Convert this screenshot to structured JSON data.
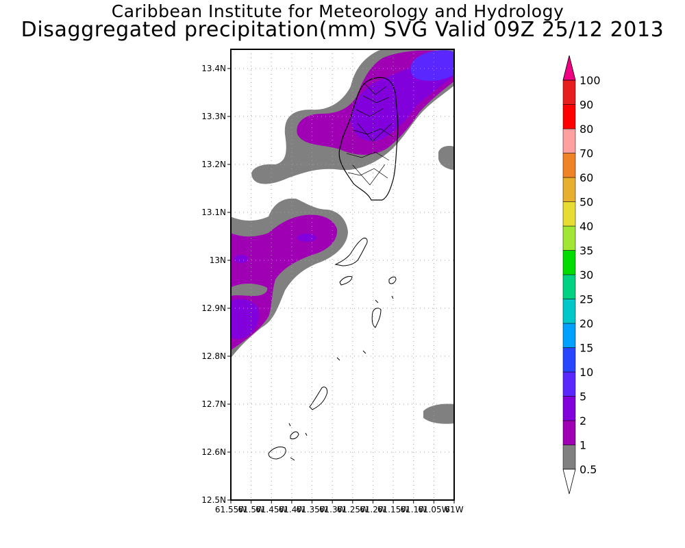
{
  "title": {
    "line1": "Caribbean Institute for Meteorology and Hydrology",
    "line2": "Disaggregated precipitation(mm) SVG Valid 09Z 25/12 2013"
  },
  "map": {
    "lat_labels": [
      "13.4N",
      "13.3N",
      "13.2N",
      "13.1N",
      "13N",
      "12.9N",
      "12.8N",
      "12.7N",
      "12.6N",
      "12.5N"
    ],
    "lon_labels": [
      "61.55W",
      "61.5W",
      "61.45W",
      "61.4W",
      "61.35W",
      "61.3W",
      "61.25W",
      "61.2W",
      "61.15W",
      "61.1W",
      "61.05W",
      "61W"
    ],
    "lat_range": [
      12.5,
      13.44
    ],
    "lon_range": [
      -61.55,
      -61.0
    ],
    "grid": "dotted"
  },
  "legend": {
    "levels": [
      {
        "label": "0.5",
        "color": "#808080"
      },
      {
        "label": "1",
        "color": "#a000b4"
      },
      {
        "label": "2",
        "color": "#8200dc"
      },
      {
        "label": "5",
        "color": "#5a28ff"
      },
      {
        "label": "10",
        "color": "#2846ff"
      },
      {
        "label": "15",
        "color": "#00a0ff"
      },
      {
        "label": "20",
        "color": "#00c8c8"
      },
      {
        "label": "25",
        "color": "#00d282"
      },
      {
        "label": "30",
        "color": "#00dc00"
      },
      {
        "label": "35",
        "color": "#a0e632"
      },
      {
        "label": "40",
        "color": "#e6dc32"
      },
      {
        "label": "50",
        "color": "#e6af2d"
      },
      {
        "label": "60",
        "color": "#f08228"
      },
      {
        "label": "70",
        "color": "#ffa0a0"
      },
      {
        "label": "80",
        "color": "#ff0000"
      },
      {
        "label": "90",
        "color": "#e61e1e"
      },
      {
        "label": "100",
        "color": "#ff3c3c"
      }
    ],
    "top_arrow_color": "#f00082",
    "bottom_arrow_color": "#ffffff"
  }
}
